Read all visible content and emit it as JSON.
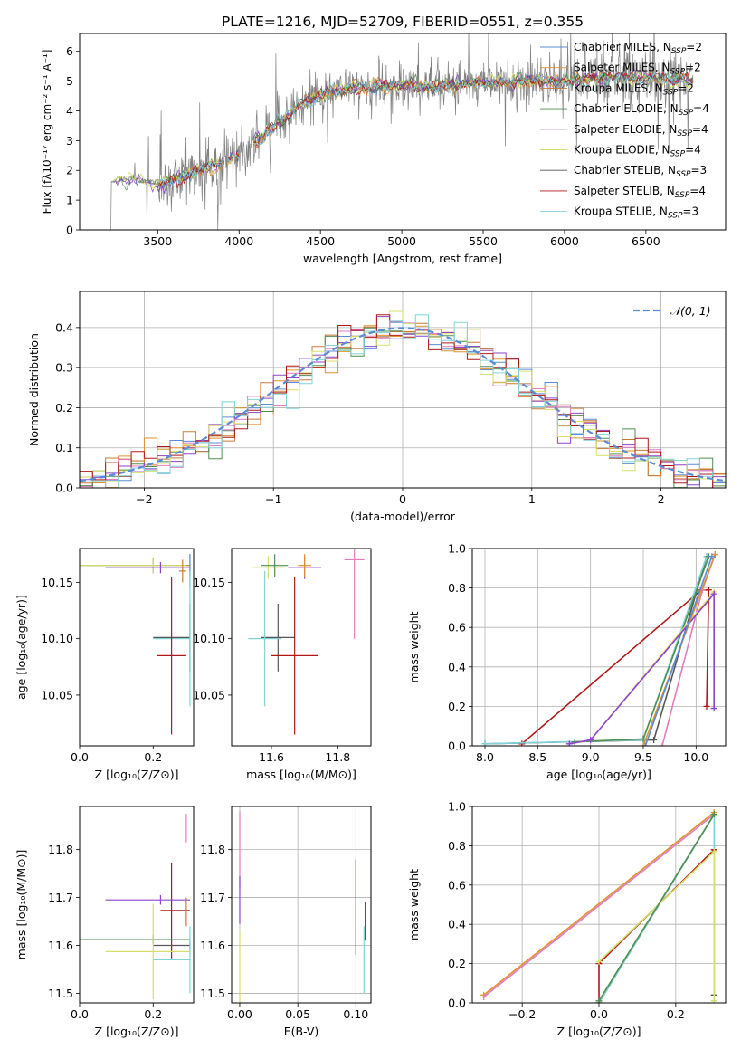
{
  "title": "PLATE=1216, MJD=52709, FIBERID=0551, z=0.355",
  "colors": {
    "Chabrier MILES": "#5a8bd8",
    "Salpeter MILES": "#e0902a",
    "Kroupa MILES": "#c87a35",
    "Chabrier ELODIE": "#4e8f4e",
    "Salpeter ELODIE": "#8e44cc",
    "Kroupa ELODIE": "#d7df6a",
    "Chabrier STELIB": "#555555",
    "Salpeter STELIB": "#b01818",
    "Kroupa STELIB": "#7fd3d8",
    "data": "#808080",
    "pink": "#e27cc0"
  },
  "chart_data": [
    {
      "type": "line",
      "xlabel": "wavelength [Angstrom, rest frame]",
      "ylabel": "Flux [fλ10⁻¹⁷ erg cm⁻² s⁻¹ A⁻¹]",
      "xlim": [
        3020,
        6990
      ],
      "ylim": [
        0,
        6.6
      ],
      "xticks": [
        3500,
        4000,
        4500,
        5000,
        5500,
        6000,
        6500
      ],
      "yticks": [
        0,
        1,
        2,
        3,
        4,
        5,
        6
      ],
      "continuum": [
        [
          3200,
          1.6
        ],
        [
          3350,
          1.75
        ],
        [
          3500,
          1.5
        ],
        [
          3700,
          1.9
        ],
        [
          3900,
          2.3
        ],
        [
          4000,
          2.5
        ],
        [
          4200,
          3.4
        ],
        [
          4400,
          4.3
        ],
        [
          4600,
          4.7
        ],
        [
          4800,
          4.8
        ],
        [
          5000,
          4.9
        ],
        [
          5200,
          4.8
        ],
        [
          5400,
          4.9
        ],
        [
          5600,
          5.0
        ],
        [
          5800,
          5.0
        ],
        [
          6000,
          5.0
        ],
        [
          6200,
          5.1
        ],
        [
          6400,
          5.1
        ],
        [
          6600,
          5.1
        ],
        [
          6780,
          5.0
        ]
      ],
      "legend": [
        {
          "label": "Chabrier MILES, N",
          "sub": "SSP",
          "suffix": "=2"
        },
        {
          "label": "Salpeter MILES, N",
          "sub": "SSP",
          "suffix": "=2"
        },
        {
          "label": "Kroupa MILES, N",
          "sub": "SSP",
          "suffix": "=2"
        },
        {
          "label": "Chabrier ELODIE, N",
          "sub": "SSP",
          "suffix": "=4"
        },
        {
          "label": "Salpeter ELODIE, N",
          "sub": "SSP",
          "suffix": "=4"
        },
        {
          "label": "Kroupa ELODIE, N",
          "sub": "SSP",
          "suffix": "=4"
        },
        {
          "label": "Chabrier STELIB, N",
          "sub": "SSP",
          "suffix": "=3"
        },
        {
          "label": "Salpeter STELIB, N",
          "sub": "SSP",
          "suffix": "=4"
        },
        {
          "label": "Kroupa STELIB, N",
          "sub": "SSP",
          "suffix": "=3"
        }
      ],
      "legend_position": "top-right"
    },
    {
      "type": "histogram",
      "xlabel": "(data-model)/error",
      "ylabel": "Normed distribution",
      "xlim": [
        -2.5,
        2.5
      ],
      "ylim": [
        0,
        0.49
      ],
      "xticks": [
        -2,
        -1,
        0,
        1,
        2
      ],
      "yticks": [
        0.0,
        0.1,
        0.2,
        0.3,
        0.4
      ],
      "grid": true,
      "legend": "𝒩(0, 1)",
      "legend_position": "top-right",
      "reference_curve": {
        "mean": 0,
        "sigma": 1,
        "style": "dashed"
      },
      "bin_width": 0.1
    },
    {
      "type": "errorbar",
      "xlabel": "Z [log₁₀(Z/Z⊙)]",
      "ylabel": "age  [log₁₀(age/yr)]",
      "xlim": [
        0.0,
        0.31
      ],
      "ylim": [
        10.005,
        10.18
      ],
      "xticks": [
        0.0,
        0.2
      ],
      "yticks": [
        10.05,
        10.1,
        10.15
      ],
      "points": [
        {
          "series": "Chabrier ELODIE",
          "x": 0.2,
          "xerr": [
            0.2,
            0.1
          ],
          "y": 10.165,
          "yerr": 0.007
        },
        {
          "series": "Kroupa ELODIE",
          "x": 0.2,
          "xerr": [
            0.2,
            0.1
          ],
          "y": 10.165,
          "yerr": 0.007
        },
        {
          "series": "Salpeter ELODIE",
          "x": 0.22,
          "xerr": [
            0.15,
            0.08
          ],
          "y": 10.163,
          "yerr": 0.005
        },
        {
          "series": "Salpeter MILES",
          "x": 0.3,
          "xerr": [
            0.01,
            0.0
          ],
          "y": 10.165,
          "yerr": 0.01
        },
        {
          "series": "Kroupa MILES",
          "x": 0.28,
          "xerr": [
            0.01,
            0.01
          ],
          "y": 10.16,
          "yerr": 0.01
        },
        {
          "series": "Chabrier MILES",
          "x": 0.3,
          "xerr": [
            0.0,
            0.0
          ],
          "y": 10.16,
          "yerr": 0.015
        },
        {
          "series": "Chabrier STELIB",
          "x": 0.3,
          "xerr": [
            0.1,
            0.0
          ],
          "y": 10.101,
          "yerr": 0.03
        },
        {
          "series": "Kroupa STELIB",
          "x": 0.3,
          "xerr": [
            0.1,
            0.0
          ],
          "y": 10.1,
          "yerr": 0.06
        },
        {
          "series": "Salpeter STELIB",
          "x": 0.25,
          "xerr": [
            0.04,
            0.04
          ],
          "y": 10.085,
          "yerr": 0.07
        }
      ]
    },
    {
      "type": "errorbar",
      "xlabel": "mass [log₁₀(M/M⊙)]",
      "ylabel": "",
      "xlim": [
        11.48,
        11.9
      ],
      "ylim": [
        10.005,
        10.18
      ],
      "xticks": [
        11.6,
        11.8
      ],
      "yticks": [
        10.05,
        10.1,
        10.15
      ],
      "points": [
        {
          "series": "Kroupa ELODIE",
          "x": 11.59,
          "xerr": [
            0.05,
            0.05
          ],
          "y": 10.163,
          "yerr": 0.01
        },
        {
          "series": "Chabrier ELODIE",
          "x": 11.61,
          "xerr": [
            0.04,
            0.04
          ],
          "y": 10.165,
          "yerr": 0.01
        },
        {
          "series": "Salpeter ELODIE",
          "x": 11.7,
          "xerr": [
            0.05,
            0.05
          ],
          "y": 10.163,
          "yerr": 0.01
        },
        {
          "series": "Salpeter MILES",
          "x": 11.7,
          "xerr": [
            0.02,
            0.02
          ],
          "y": 10.165,
          "yerr": 0.01
        },
        {
          "series": "pink",
          "x": 11.85,
          "xerr": [
            0.03,
            0.03
          ],
          "y": 10.17,
          "yerr": 0.07
        },
        {
          "series": "Chabrier STELIB",
          "x": 11.62,
          "xerr": [
            0.05,
            0.05
          ],
          "y": 10.101,
          "yerr": 0.03
        },
        {
          "series": "Kroupa STELIB",
          "x": 11.58,
          "xerr": [
            0.05,
            0.05
          ],
          "y": 10.1,
          "yerr": 0.06
        },
        {
          "series": "Salpeter STELIB",
          "x": 11.67,
          "xerr": [
            0.07,
            0.07
          ],
          "y": 10.085,
          "yerr": 0.07
        }
      ]
    },
    {
      "type": "line",
      "xlabel": "age  [log₁₀(age/yr)]",
      "ylabel": "mass weight",
      "xlim": [
        7.88,
        10.28
      ],
      "ylim": [
        0,
        1.0
      ],
      "xticks": [
        8.0,
        8.5,
        9.0,
        9.5,
        10.0
      ],
      "yticks": [
        0.0,
        0.2,
        0.4,
        0.6,
        0.8,
        1.0
      ],
      "grid": true,
      "series": [
        {
          "name": "Salpeter STELIB",
          "x": [
            8.35,
            10.05,
            10.12,
            10.1
          ],
          "y": [
            0.01,
            0.79,
            0.79,
            0.2
          ]
        },
        {
          "name": "pink",
          "x": [
            9.68,
            10.06,
            10.18
          ],
          "y": [
            0.0,
            0.79,
            0.97
          ]
        },
        {
          "name": "Chabrier STELIB",
          "x": [
            8.0,
            9.6,
            10.1
          ],
          "y": [
            0.01,
            0.03,
            0.96
          ]
        },
        {
          "name": "Kroupa STELIB",
          "x": [
            8.0,
            9.5,
            10.1
          ],
          "y": [
            0.01,
            0.03,
            0.96
          ]
        },
        {
          "name": "Chabrier ELODIE",
          "x": [
            8.85,
            9.5,
            10.12
          ],
          "y": [
            0.02,
            0.035,
            0.96
          ]
        },
        {
          "name": "Kroupa ELODIE",
          "x": [
            8.8,
            9.0,
            10.17,
            10.17
          ],
          "y": [
            0.01,
            0.03,
            0.78,
            0.19
          ]
        },
        {
          "name": "Salpeter ELODIE",
          "x": [
            8.8,
            9.0,
            10.17,
            10.17
          ],
          "y": [
            0.01,
            0.03,
            0.77,
            0.19
          ]
        },
        {
          "name": "Salpeter MILES",
          "x": [
            9.5,
            10.18
          ],
          "y": [
            0.0,
            0.97
          ]
        },
        {
          "name": "Chabrier MILES",
          "x": [
            9.52,
            10.15
          ],
          "y": [
            0.0,
            0.96
          ]
        }
      ]
    },
    {
      "type": "errorbar",
      "xlabel": "Z [log₁₀(Z/Z⊙)]",
      "ylabel": "mass [log₁₀(M/M⊙)]",
      "xlim": [
        0.0,
        0.31
      ],
      "ylim": [
        11.48,
        11.89
      ],
      "xticks": [
        0.0,
        0.2
      ],
      "yticks": [
        11.5,
        11.6,
        11.7,
        11.8
      ],
      "points": [
        {
          "series": "pink",
          "x": 0.29,
          "xerr": [
            0.0,
            0.0
          ],
          "y": 11.845,
          "yerr": 0.03
        },
        {
          "series": "Salpeter STELIB",
          "x": 0.25,
          "xerr": [
            0.03,
            0.05
          ],
          "y": 11.673,
          "yerr": 0.1
        },
        {
          "series": "Salpeter ELODIE",
          "x": 0.22,
          "xerr": [
            0.15,
            0.08
          ],
          "y": 11.695,
          "yerr": 0.01
        },
        {
          "series": "Kroupa MILES",
          "x": 0.29,
          "xerr": [
            0.0,
            0.0
          ],
          "y": 11.67,
          "yerr": 0.03
        },
        {
          "series": "Chabrier ELODIE",
          "x": 0.2,
          "xerr": [
            0.2,
            0.1
          ],
          "y": 11.612,
          "yerr": 0.01
        },
        {
          "series": "Chabrier STELIB",
          "x": 0.3,
          "xerr": [
            0.1,
            0.0
          ],
          "y": 11.6,
          "yerr": 0.01
        },
        {
          "series": "Kroupa ELODIE",
          "x": 0.2,
          "xerr": [
            0.13,
            0.1
          ],
          "y": 11.587,
          "yerr": 0.1
        },
        {
          "series": "Kroupa STELIB",
          "x": 0.3,
          "xerr": [
            0.1,
            0.0
          ],
          "y": 11.57,
          "yerr": 0.07
        }
      ]
    },
    {
      "type": "errorbar",
      "xlabel": "E(B-V)",
      "ylabel": "",
      "xlim": [
        -0.007,
        0.113
      ],
      "ylim": [
        11.48,
        11.89
      ],
      "xticks": [
        0.0,
        0.05,
        0.1
      ],
      "yticks": [
        11.5,
        11.6,
        11.7,
        11.8
      ],
      "grid": true,
      "points": [
        {
          "series": "pink",
          "x": 0.0,
          "xerr": [
            0,
            0
          ],
          "y": 11.8,
          "yerr": 0.08
        },
        {
          "series": "Salpeter ELODIE",
          "x": 0.0,
          "xerr": [
            0,
            0
          ],
          "y": 11.695,
          "yerr": 0.05
        },
        {
          "series": "Kroupa ELODIE",
          "x": 0.0,
          "xerr": [
            0,
            0
          ],
          "y": 11.55,
          "yerr": 0.08
        },
        {
          "series": "Salpeter STELIB",
          "x": 0.1,
          "xerr": [
            0,
            0
          ],
          "y": 11.68,
          "yerr": 0.1
        },
        {
          "series": "Kroupa STELIB",
          "x": 0.107,
          "xerr": [
            0,
            0
          ],
          "y": 11.57,
          "yerr": 0.07
        },
        {
          "series": "Chabrier STELIB",
          "x": 0.108,
          "xerr": [
            0,
            0
          ],
          "y": 11.65,
          "yerr": 0.04
        }
      ]
    },
    {
      "type": "line",
      "xlabel": "Z [log₁₀(Z/Z⊙)]",
      "ylabel": "mass weight",
      "xlim": [
        -0.33,
        0.33
      ],
      "ylim": [
        0,
        1.0
      ],
      "xticks": [
        -0.2,
        0.0,
        0.2
      ],
      "yticks": [
        0.0,
        0.2,
        0.4,
        0.6,
        0.8,
        1.0
      ],
      "grid": true,
      "series": [
        {
          "name": "Salpeter MILES",
          "x": [
            -0.3,
            0.3
          ],
          "y": [
            0.04,
            0.97
          ]
        },
        {
          "name": "pink",
          "x": [
            -0.3,
            0.3
          ],
          "y": [
            0.03,
            0.96
          ]
        },
        {
          "name": "Salpeter STELIB",
          "x": [
            0.0,
            0.0,
            0.3,
            0.3
          ],
          "y": [
            0.0,
            0.2,
            0.78,
            0.78
          ]
        },
        {
          "name": "Chabrier STELIB",
          "x": [
            0.0,
            0.3,
            0.3
          ],
          "y": [
            0.0,
            0.96,
            0.04
          ]
        },
        {
          "name": "Kroupa STELIB",
          "x": [
            0.0,
            0.3,
            0.3
          ],
          "y": [
            0.0,
            0.96,
            0.01
          ]
        },
        {
          "name": "Kroupa ELODIE",
          "x": [
            0.0,
            0.3,
            0.3
          ],
          "y": [
            0.21,
            0.77,
            0.01
          ]
        },
        {
          "name": "Chabrier ELODIE",
          "x": [
            0.0,
            0.3
          ],
          "y": [
            0.01,
            0.96
          ]
        }
      ]
    }
  ]
}
